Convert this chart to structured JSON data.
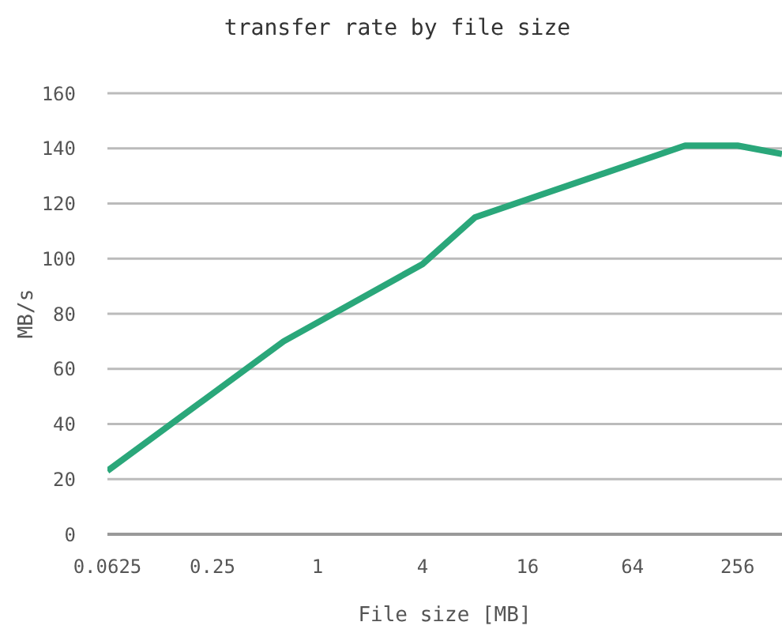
{
  "chart_data": {
    "type": "line",
    "title": "transfer rate by file size",
    "xlabel": "File size [MB]",
    "ylabel": "MB/s",
    "log": "x",
    "x": [
      0.0625,
      0.64,
      4,
      8,
      128,
      256,
      460
    ],
    "series": [
      {
        "color": "#2aa77a",
        "values": [
          23,
          70,
          98,
          115,
          141,
          141,
          138
        ]
      }
    ],
    "xlim": [
      0.0625,
      460
    ],
    "xticks": [
      0.0625,
      0.25,
      1,
      4,
      16,
      64,
      256
    ],
    "ylim": [
      0,
      160
    ],
    "yticks": [
      0,
      20,
      40,
      60,
      80,
      100,
      120,
      140,
      160
    ],
    "grid": "y",
    "marker": "none",
    "line_style": "solid"
  }
}
